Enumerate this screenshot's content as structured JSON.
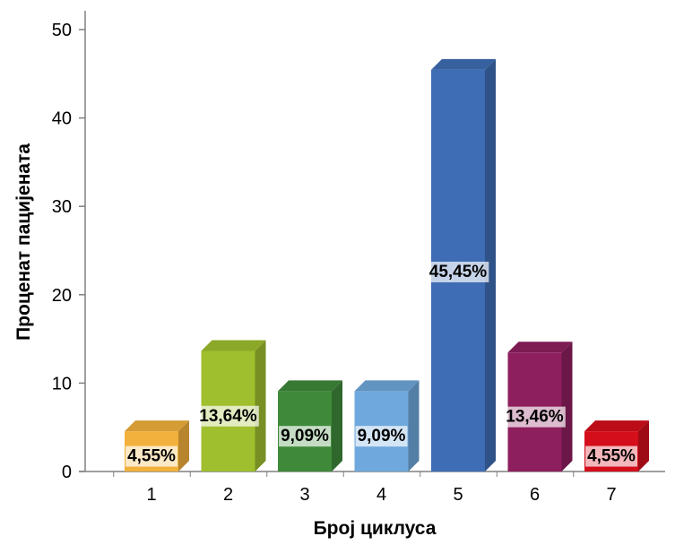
{
  "chart_data": {
    "type": "bar",
    "title": "",
    "xlabel": "Број циклуса",
    "ylabel": "Проценат пацијената",
    "ylim": [
      0,
      50
    ],
    "yticks": [
      0,
      10,
      20,
      30,
      40,
      50
    ],
    "categories": [
      "1",
      "2",
      "3",
      "4",
      "5",
      "6",
      "7"
    ],
    "values": [
      4.55,
      13.64,
      9.09,
      9.09,
      45.45,
      13.46,
      4.55
    ],
    "data_labels": [
      "4,55%",
      "13,64%",
      "9,09%",
      "9,09%",
      "45,45%",
      "13,46%",
      "4,55%"
    ],
    "colors": [
      "#F2B13C",
      "#9FBF2E",
      "#3F8A3A",
      "#6FA8DC",
      "#3E6DB5",
      "#8E1F5E",
      "#D40E1B"
    ],
    "grid": false,
    "legend": "none"
  }
}
